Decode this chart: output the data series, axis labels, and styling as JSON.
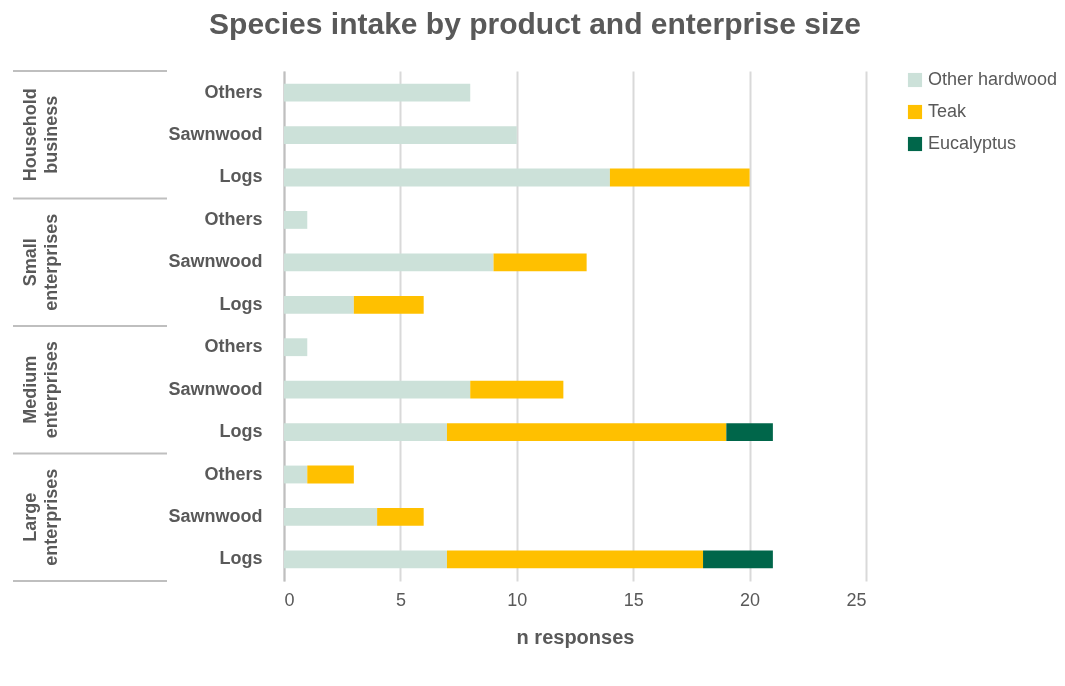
{
  "chart_data": {
    "type": "bar",
    "orientation": "horizontal",
    "stacked": true,
    "title": "Species intake by product and enterprise size",
    "xlabel": "n responses",
    "categories": [
      "Others",
      "Sawnwood",
      "Logs",
      "Others",
      "Sawnwood",
      "Logs",
      "Others",
      "Sawnwood",
      "Logs",
      "Others",
      "Sawnwood",
      "Logs"
    ],
    "annotations": [
      "Household business",
      "Small enterprises",
      "Medium enterprises",
      "Large enterprises"
    ],
    "series": [
      {
        "name": "Other hardwood",
        "color": "#cce1d9",
        "values": [
          8,
          10,
          14,
          1,
          9,
          3,
          1,
          8,
          7,
          1,
          4,
          7
        ]
      },
      {
        "name": "Teak",
        "color": "#ffc000",
        "values": [
          0,
          0,
          6,
          0,
          4,
          3,
          0,
          4,
          12,
          2,
          2,
          11
        ]
      },
      {
        "name": "Eucalyptus",
        "color": "#00664a",
        "values": [
          0,
          0,
          0,
          0,
          0,
          0,
          0,
          0,
          2,
          0,
          0,
          3
        ]
      }
    ],
    "xlim": [
      0,
      25
    ],
    "xticks": [
      0,
      5,
      10,
      15,
      20,
      25
    ],
    "grid": "x",
    "legend": "right"
  }
}
